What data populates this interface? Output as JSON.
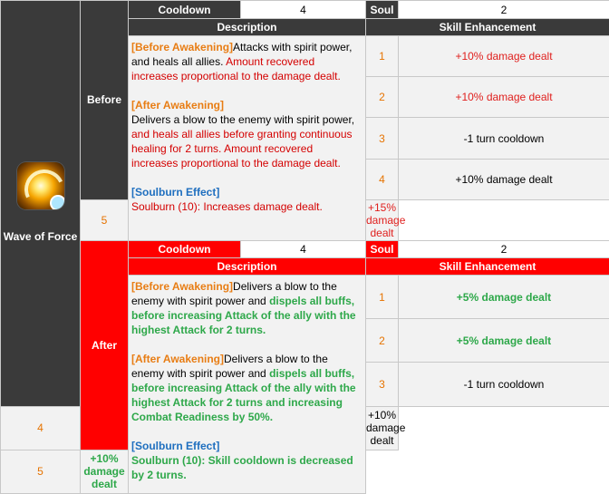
{
  "skill": {
    "name": "Wave of Force",
    "icon": "wave-of-force-skill-icon"
  },
  "labels": {
    "cooldown": "Cooldown",
    "soul": "Soul",
    "description": "Description",
    "skill_enhancement": "Skill Enhancement"
  },
  "before": {
    "stage": "Before",
    "cooldown": "4",
    "soul": "2",
    "description": {
      "before_awakening_tag": "[Before Awakening]",
      "before_awakening_plain": "Attacks with spirit power, and heals all allies. ",
      "before_awakening_highlight": "Amount recovered increases proportional to the damage dealt.",
      "after_awakening_tag": "[After Awakening]",
      "after_awakening_plain": "Delivers a blow to the enemy with spirit power, ",
      "after_awakening_highlight": "and heals all allies before granting continuous healing for 2 turns. Amount recovered increases proportional to the damage dealt.",
      "soulburn_tag": "[Soulburn Effect]",
      "soulburn_text": "Soulburn (10): Increases damage dealt."
    },
    "enhancements": [
      {
        "level": "1",
        "effect": "+10% damage dealt",
        "style": "red"
      },
      {
        "level": "2",
        "effect": "+10% damage dealt",
        "style": "red"
      },
      {
        "level": "3",
        "effect": "-1 turn cooldown",
        "style": "black"
      },
      {
        "level": "4",
        "effect": "+10% damage dealt",
        "style": "black"
      },
      {
        "level": "5",
        "effect": "+15% damage dealt",
        "style": "red"
      }
    ]
  },
  "after": {
    "stage": "After",
    "cooldown": "4",
    "soul": "2",
    "description": {
      "before_awakening_tag": "[Before Awakening]",
      "before_awakening_plain": "Delivers a blow to the enemy with spirit power and ",
      "before_awakening_highlight": "dispels all buffs, before increasing Attack of the ally with the highest Attack for 2 turns.",
      "after_awakening_tag": "[After Awakening]",
      "after_awakening_plain": "Delivers a blow to the enemy with spirit power and ",
      "after_awakening_highlight": "dispels all buffs, before increasing Attack of the ally with the highest Attack for 2 turns and increasing Combat Readiness by 50%.",
      "soulburn_tag": "[Soulburn Effect]",
      "soulburn_text": "Soulburn (10): Skill cooldown is decreased by 2 turns."
    },
    "enhancements": [
      {
        "level": "1",
        "effect": "+5% damage dealt",
        "style": "green"
      },
      {
        "level": "2",
        "effect": "+5% damage dealt",
        "style": "green"
      },
      {
        "level": "3",
        "effect": "-1 turn cooldown",
        "style": "black"
      },
      {
        "level": "4",
        "effect": "+10% damage dealt",
        "style": "black"
      },
      {
        "level": "5",
        "effect": "+10% damage dealt",
        "style": "green"
      }
    ]
  },
  "colors": {
    "header_dark": "#3a3a3a",
    "after_red": "#ff0000",
    "tag_orange": "#e87d14",
    "text_red": "#d40000",
    "tag_blue": "#1f6fbf",
    "text_green": "#2ea84a"
  }
}
